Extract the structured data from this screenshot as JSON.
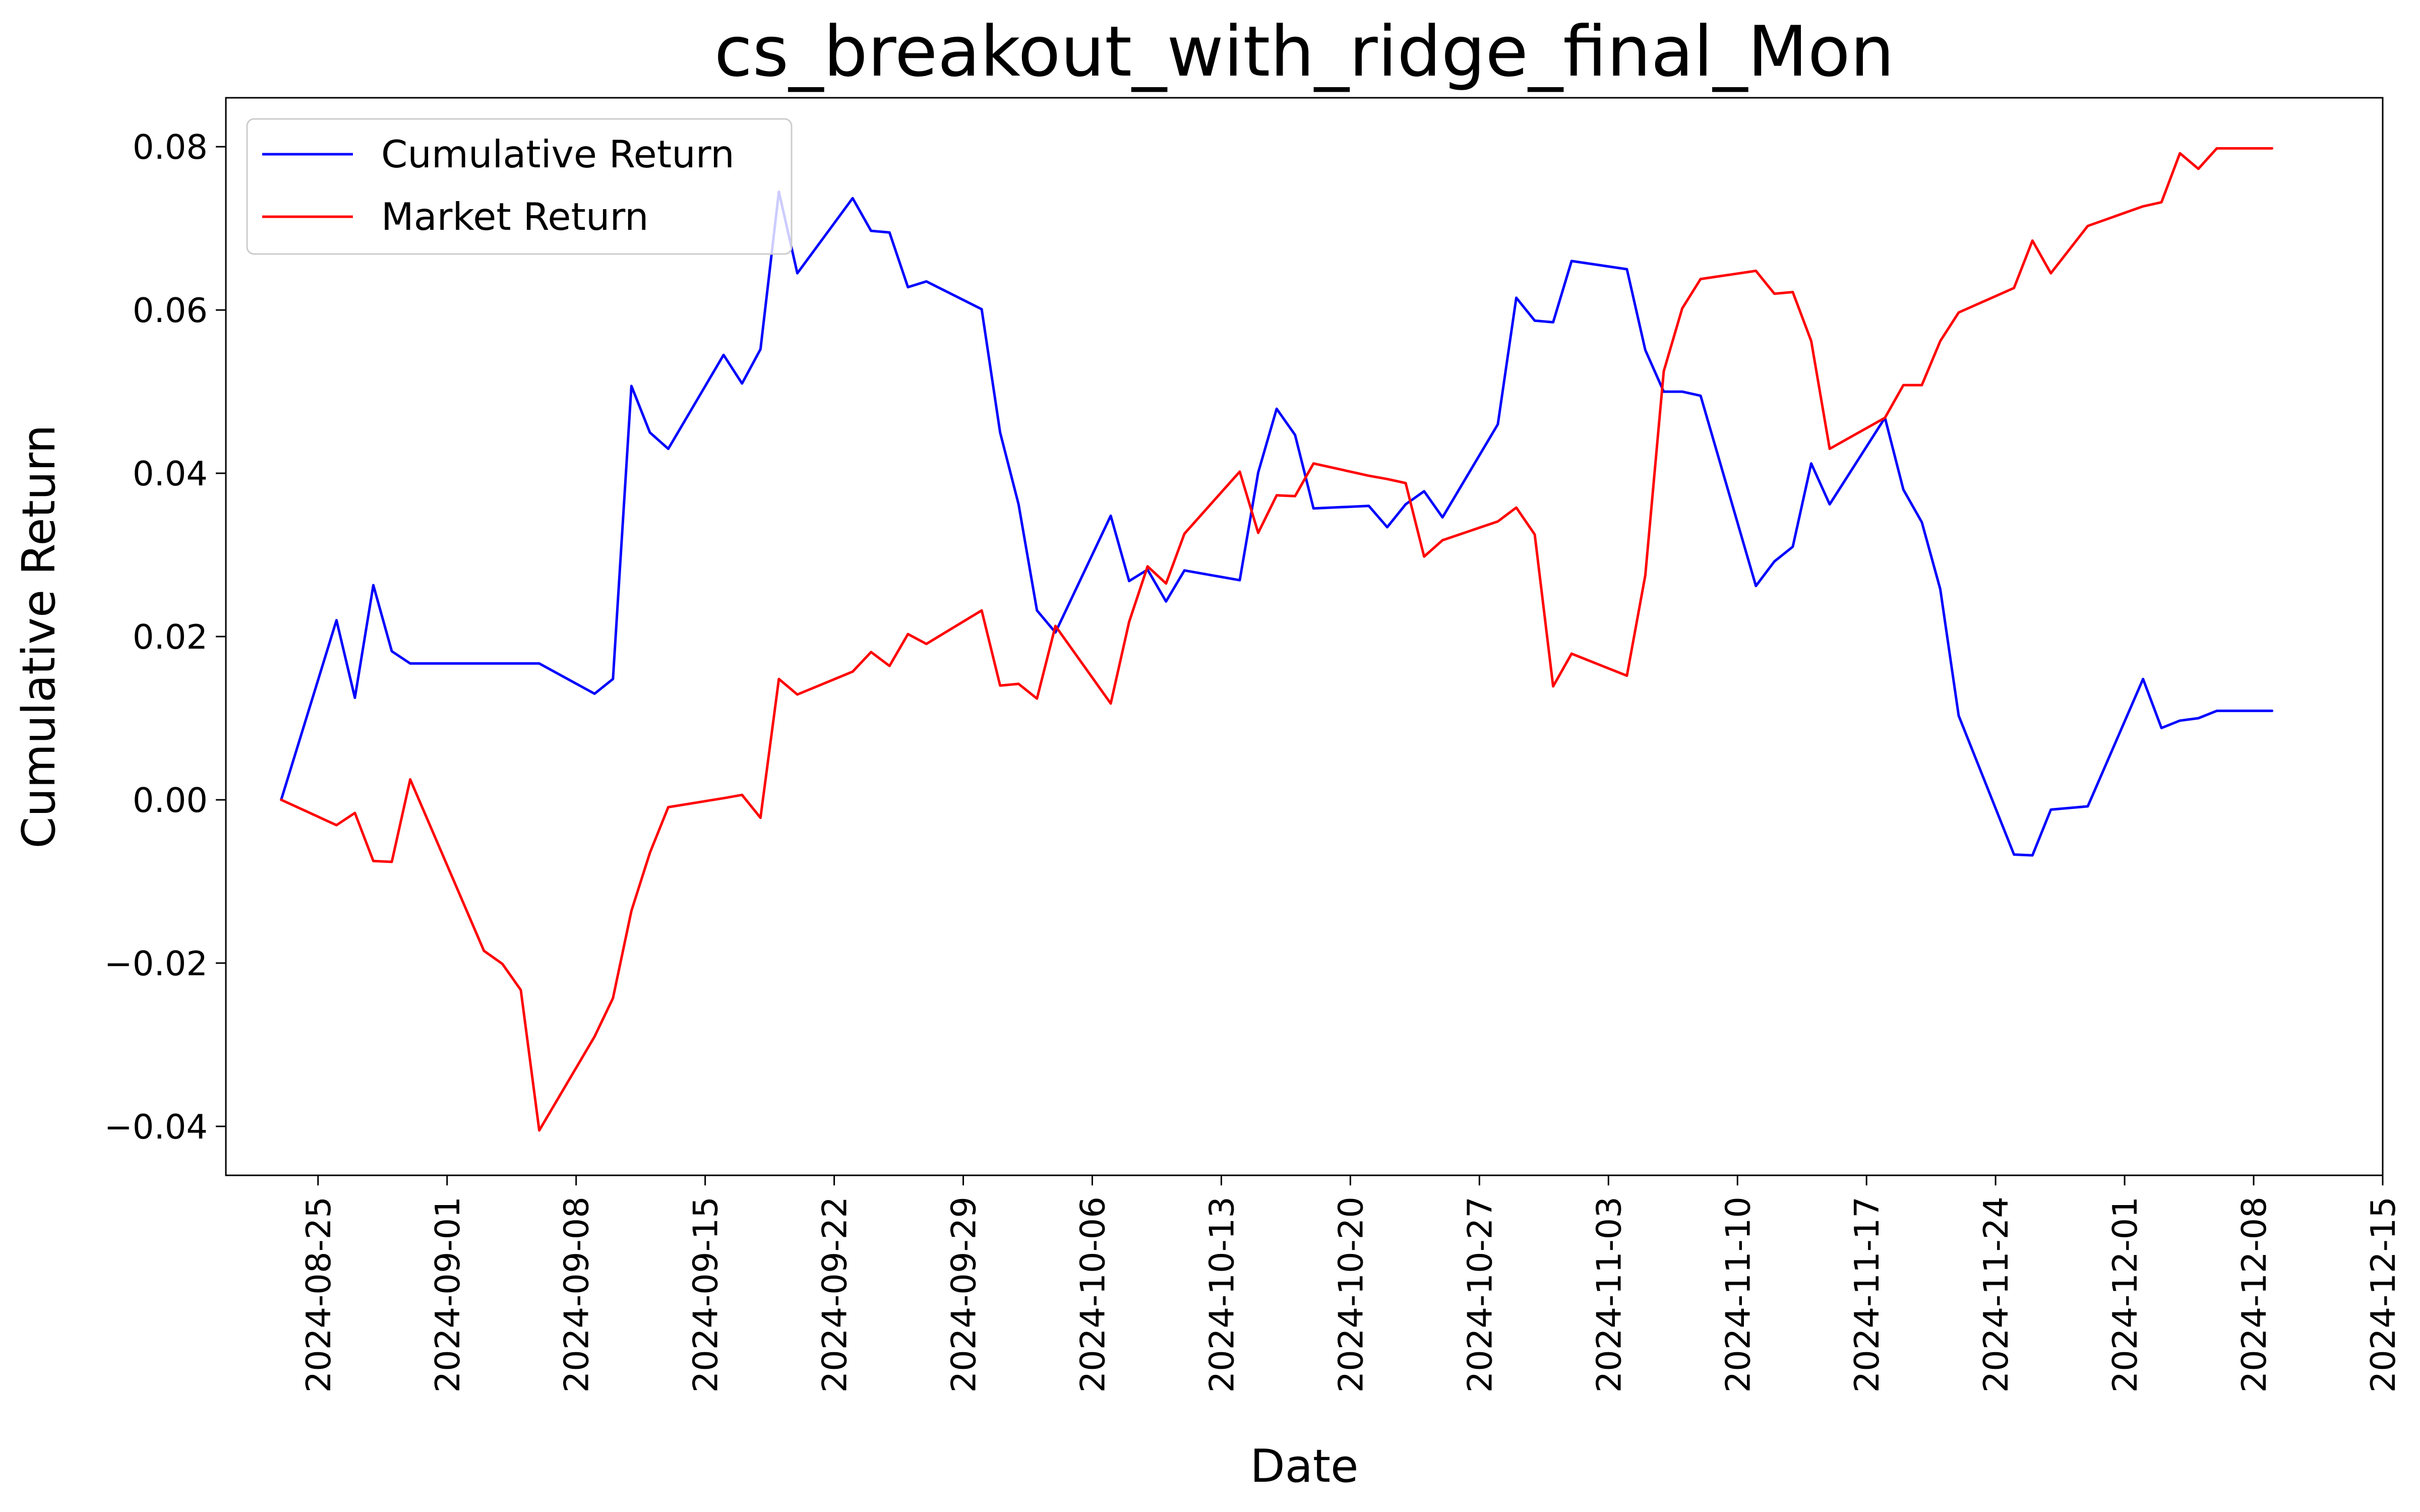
{
  "chart_data": {
    "type": "line",
    "title": "cs_breakout_with_ridge_final_Mon",
    "xlabel": "Date",
    "ylabel": "Cumulative Return",
    "xlim": [
      "2024-08-20",
      "2024-12-15"
    ],
    "ylim": [
      -0.046,
      0.086
    ],
    "x_ticks": [
      "2024-08-25",
      "2024-09-01",
      "2024-09-08",
      "2024-09-15",
      "2024-09-22",
      "2024-09-29",
      "2024-10-06",
      "2024-10-13",
      "2024-10-20",
      "2024-10-27",
      "2024-11-03",
      "2024-11-10",
      "2024-11-17",
      "2024-11-24",
      "2024-12-01",
      "2024-12-08",
      "2024-12-15"
    ],
    "y_ticks": [
      -0.04,
      -0.02,
      0.0,
      0.02,
      0.04,
      0.06,
      0.08
    ],
    "y_tick_labels": [
      "−0.04",
      "−0.02",
      "0.00",
      "0.02",
      "0.04",
      "0.06",
      "0.08"
    ],
    "grid": false,
    "legend_position": "top-left",
    "series": [
      {
        "name": "Cumulative Return",
        "color": "#0000ff",
        "points": [
          [
            "2024-08-23",
            0.0
          ],
          [
            "2024-08-26",
            0.022
          ],
          [
            "2024-08-27",
            0.0125
          ],
          [
            "2024-08-28",
            0.0263
          ],
          [
            "2024-08-29",
            0.0182
          ],
          [
            "2024-08-30",
            0.0167
          ],
          [
            "2024-09-06",
            0.0167
          ],
          [
            "2024-09-09",
            0.013
          ],
          [
            "2024-09-10",
            0.0148
          ],
          [
            "2024-09-11",
            0.0507
          ],
          [
            "2024-09-12",
            0.045
          ],
          [
            "2024-09-13",
            0.043
          ],
          [
            "2024-09-16",
            0.0545
          ],
          [
            "2024-09-17",
            0.051
          ],
          [
            "2024-09-18",
            0.0552
          ],
          [
            "2024-09-19",
            0.0745
          ],
          [
            "2024-09-20",
            0.0645
          ],
          [
            "2024-09-23",
            0.0737
          ],
          [
            "2024-09-24",
            0.0697
          ],
          [
            "2024-09-25",
            0.0695
          ],
          [
            "2024-09-26",
            0.0628
          ],
          [
            "2024-09-27",
            0.0635
          ],
          [
            "2024-09-30",
            0.0601
          ],
          [
            "2024-10-01",
            0.045
          ],
          [
            "2024-10-02",
            0.0362
          ],
          [
            "2024-10-03",
            0.0232
          ],
          [
            "2024-10-04",
            0.0205
          ],
          [
            "2024-10-07",
            0.0348
          ],
          [
            "2024-10-08",
            0.0268
          ],
          [
            "2024-10-09",
            0.0282
          ],
          [
            "2024-10-10",
            0.0243
          ],
          [
            "2024-10-11",
            0.0281
          ],
          [
            "2024-10-14",
            0.0269
          ],
          [
            "2024-10-15",
            0.0401
          ],
          [
            "2024-10-16",
            0.0479
          ],
          [
            "2024-10-17",
            0.0447
          ],
          [
            "2024-10-18",
            0.0357
          ],
          [
            "2024-10-21",
            0.036
          ],
          [
            "2024-10-22",
            0.0334
          ],
          [
            "2024-10-23",
            0.0362
          ],
          [
            "2024-10-24",
            0.0378
          ],
          [
            "2024-10-25",
            0.0346
          ],
          [
            "2024-10-28",
            0.046
          ],
          [
            "2024-10-29",
            0.0615
          ],
          [
            "2024-10-30",
            0.0587
          ],
          [
            "2024-10-31",
            0.0585
          ],
          [
            "2024-11-01",
            0.066
          ],
          [
            "2024-11-04",
            0.065
          ],
          [
            "2024-11-05",
            0.0551
          ],
          [
            "2024-11-06",
            0.05
          ],
          [
            "2024-11-07",
            0.05
          ],
          [
            "2024-11-08",
            0.0495
          ],
          [
            "2024-11-11",
            0.0262
          ],
          [
            "2024-11-12",
            0.0292
          ],
          [
            "2024-11-13",
            0.031
          ],
          [
            "2024-11-14",
            0.0412
          ],
          [
            "2024-11-15",
            0.0362
          ],
          [
            "2024-11-18",
            0.0468
          ],
          [
            "2024-11-19",
            0.038
          ],
          [
            "2024-11-20",
            0.034
          ],
          [
            "2024-11-21",
            0.0258
          ],
          [
            "2024-11-22",
            0.0103
          ],
          [
            "2024-11-25",
            -0.0067
          ],
          [
            "2024-11-26",
            -0.0068
          ],
          [
            "2024-11-27",
            -0.0012
          ],
          [
            "2024-11-29",
            -0.0008
          ],
          [
            "2024-12-02",
            0.0148
          ],
          [
            "2024-12-03",
            0.0088
          ],
          [
            "2024-12-04",
            0.0097
          ],
          [
            "2024-12-05",
            0.01
          ],
          [
            "2024-12-06",
            0.0109
          ],
          [
            "2024-12-09",
            0.0109
          ]
        ]
      },
      {
        "name": "Market Return",
        "color": "#ff0000",
        "points": [
          [
            "2024-08-23",
            0.0
          ],
          [
            "2024-08-26",
            -0.0031
          ],
          [
            "2024-08-27",
            -0.0016
          ],
          [
            "2024-08-28",
            -0.0075
          ],
          [
            "2024-08-29",
            -0.0076
          ],
          [
            "2024-08-30",
            0.0025
          ],
          [
            "2024-09-03",
            -0.0185
          ],
          [
            "2024-09-04",
            -0.0201
          ],
          [
            "2024-09-05",
            -0.0233
          ],
          [
            "2024-09-06",
            -0.0405
          ],
          [
            "2024-09-09",
            -0.029
          ],
          [
            "2024-09-10",
            -0.0243
          ],
          [
            "2024-09-11",
            -0.0136
          ],
          [
            "2024-09-12",
            -0.0065
          ],
          [
            "2024-09-13",
            -0.0009
          ],
          [
            "2024-09-16",
            0.0002
          ],
          [
            "2024-09-17",
            0.0006
          ],
          [
            "2024-09-18",
            -0.0022
          ],
          [
            "2024-09-19",
            0.0148
          ],
          [
            "2024-09-20",
            0.0129
          ],
          [
            "2024-09-23",
            0.0157
          ],
          [
            "2024-09-24",
            0.0181
          ],
          [
            "2024-09-25",
            0.0164
          ],
          [
            "2024-09-26",
            0.0203
          ],
          [
            "2024-09-27",
            0.0191
          ],
          [
            "2024-09-30",
            0.0232
          ],
          [
            "2024-10-01",
            0.014
          ],
          [
            "2024-10-02",
            0.0142
          ],
          [
            "2024-10-03",
            0.0124
          ],
          [
            "2024-10-04",
            0.0213
          ],
          [
            "2024-10-07",
            0.0118
          ],
          [
            "2024-10-08",
            0.0218
          ],
          [
            "2024-10-09",
            0.0286
          ],
          [
            "2024-10-10",
            0.0265
          ],
          [
            "2024-10-11",
            0.0326
          ],
          [
            "2024-10-14",
            0.0402
          ],
          [
            "2024-10-15",
            0.0327
          ],
          [
            "2024-10-16",
            0.0373
          ],
          [
            "2024-10-17",
            0.0372
          ],
          [
            "2024-10-18",
            0.0412
          ],
          [
            "2024-10-21",
            0.0397
          ],
          [
            "2024-10-22",
            0.0393
          ],
          [
            "2024-10-23",
            0.0388
          ],
          [
            "2024-10-24",
            0.0298
          ],
          [
            "2024-10-25",
            0.0318
          ],
          [
            "2024-10-28",
            0.0341
          ],
          [
            "2024-10-29",
            0.0358
          ],
          [
            "2024-10-30",
            0.0325
          ],
          [
            "2024-10-31",
            0.0139
          ],
          [
            "2024-11-01",
            0.0179
          ],
          [
            "2024-11-04",
            0.0152
          ],
          [
            "2024-11-05",
            0.0275
          ],
          [
            "2024-11-06",
            0.0525
          ],
          [
            "2024-11-07",
            0.0602
          ],
          [
            "2024-11-08",
            0.0638
          ],
          [
            "2024-11-11",
            0.0648
          ],
          [
            "2024-11-12",
            0.062
          ],
          [
            "2024-11-13",
            0.0622
          ],
          [
            "2024-11-14",
            0.0562
          ],
          [
            "2024-11-15",
            0.043
          ],
          [
            "2024-11-18",
            0.0468
          ],
          [
            "2024-11-19",
            0.0508
          ],
          [
            "2024-11-20",
            0.0508
          ],
          [
            "2024-11-21",
            0.0562
          ],
          [
            "2024-11-22",
            0.0597
          ],
          [
            "2024-11-25",
            0.0627
          ],
          [
            "2024-11-26",
            0.0685
          ],
          [
            "2024-11-27",
            0.0645
          ],
          [
            "2024-11-29",
            0.0703
          ],
          [
            "2024-12-02",
            0.0727
          ],
          [
            "2024-12-03",
            0.0732
          ],
          [
            "2024-12-04",
            0.0792
          ],
          [
            "2024-12-05",
            0.0773
          ],
          [
            "2024-12-06",
            0.0798
          ],
          [
            "2024-12-09",
            0.0798
          ]
        ]
      }
    ]
  }
}
